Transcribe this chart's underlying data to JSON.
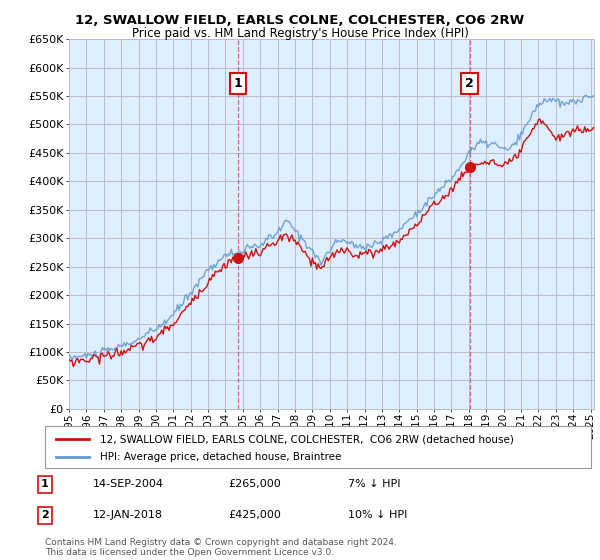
{
  "title1": "12, SWALLOW FIELD, EARLS COLNE, COLCHESTER, CO6 2RW",
  "title2": "Price paid vs. HM Land Registry's House Price Index (HPI)",
  "ylim": [
    0,
    650000
  ],
  "yticks": [
    0,
    50000,
    100000,
    150000,
    200000,
    250000,
    300000,
    350000,
    400000,
    450000,
    500000,
    550000,
    600000,
    650000
  ],
  "xlim_start": 1995.0,
  "xlim_end": 2025.2,
  "bg_color": "#ffffff",
  "plot_bg_color": "#ddeeff",
  "grid_color": "#bbbbcc",
  "line_color_hpi": "#6699cc",
  "line_color_price": "#cc1111",
  "point1_x": 2004.71,
  "point1_y": 265000,
  "point2_x": 2018.04,
  "point2_y": 425000,
  "legend_label1": "12, SWALLOW FIELD, EARLS COLNE, COLCHESTER,  CO6 2RW (detached house)",
  "legend_label2": "HPI: Average price, detached house, Braintree",
  "annotation1_label": "1",
  "annotation2_label": "2",
  "note1_num": "1",
  "note1_date": "14-SEP-2004",
  "note1_price": "£265,000",
  "note1_change": "7% ↓ HPI",
  "note2_num": "2",
  "note2_date": "12-JAN-2018",
  "note2_price": "£425,000",
  "note2_change": "10% ↓ HPI",
  "footer": "Contains HM Land Registry data © Crown copyright and database right 2024.\nThis data is licensed under the Open Government Licence v3.0."
}
